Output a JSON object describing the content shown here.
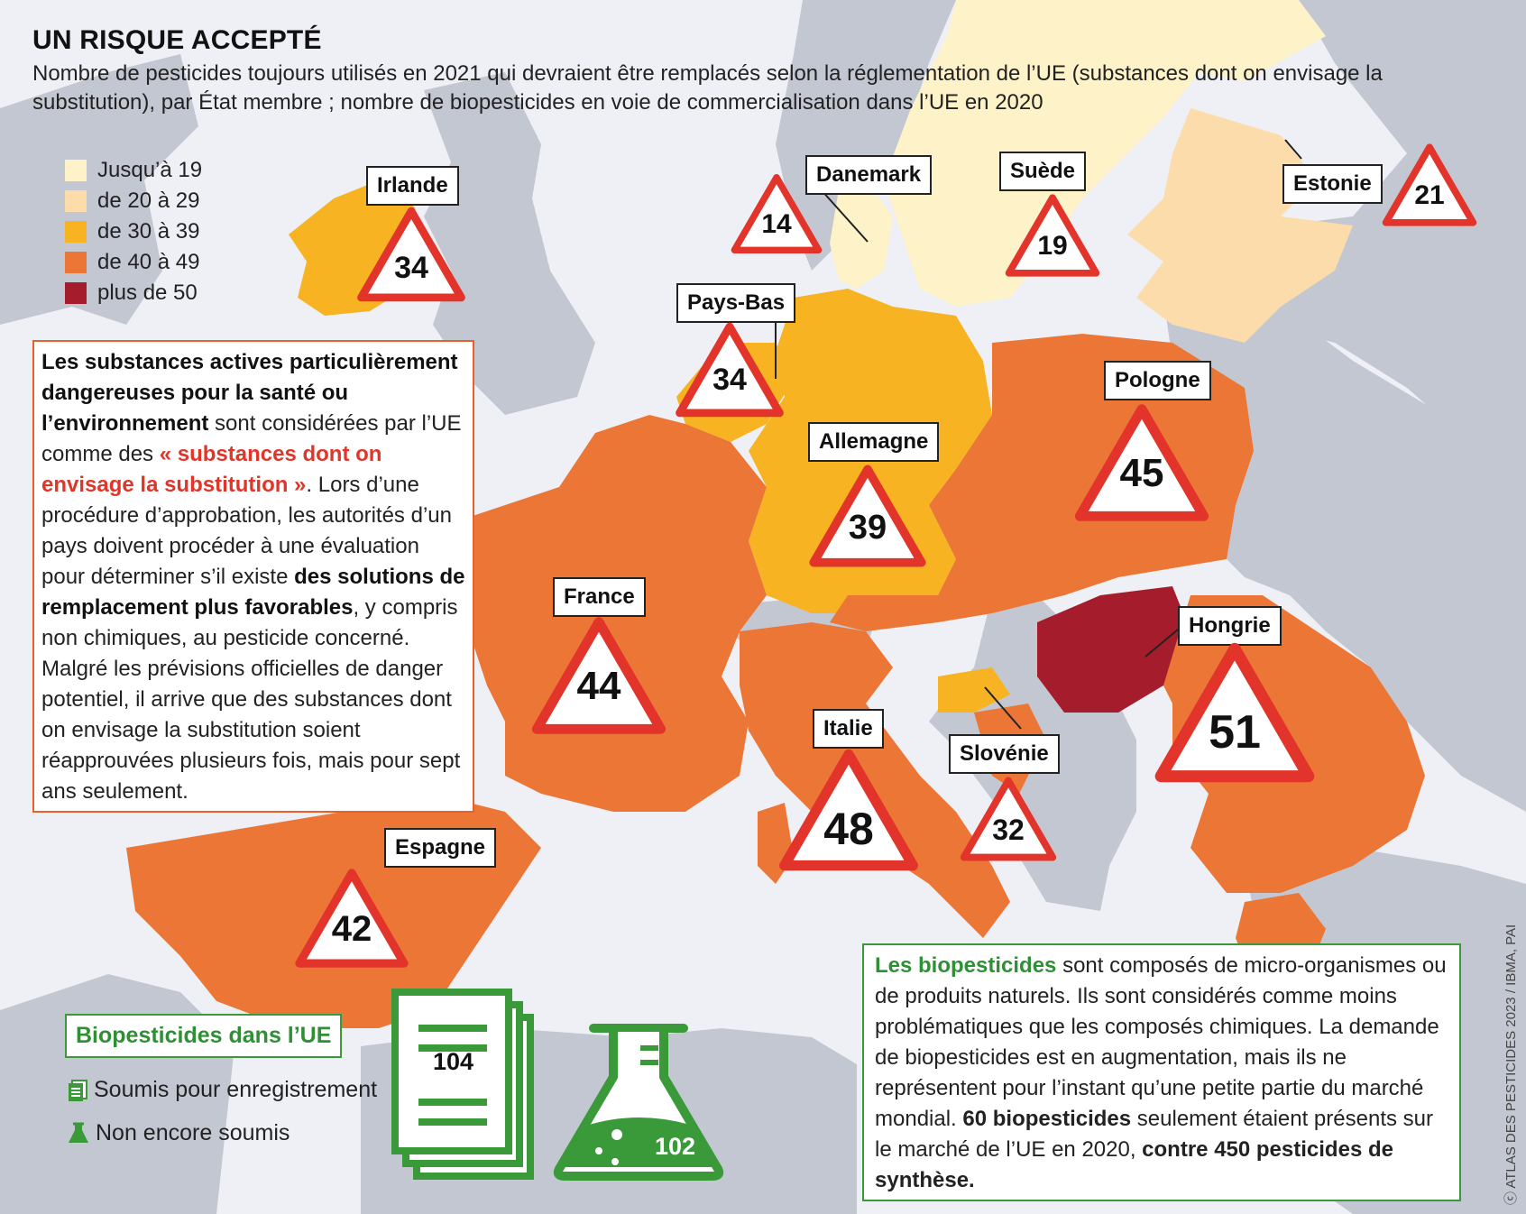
{
  "header": {
    "title": "UN RISQUE ACCEPTÉ",
    "subtitle": "Nombre de pesticides toujours utilisés en 2021 qui devraient être remplacés selon la réglementation de l’UE (substances dont on envisage la substitution), par État membre ; nombre de biopesticides en voie de commercialisation dans l’UE en 2020"
  },
  "legend": [
    {
      "label": "Jusqu’à 19",
      "color": "#fdf2c8"
    },
    {
      "label": "de 20 à 29",
      "color": "#fddcab"
    },
    {
      "label": "de 30 à 39",
      "color": "#f7b321"
    },
    {
      "label": "de 40 à 49",
      "color": "#ec7636"
    },
    {
      "label": "plus de 50",
      "color": "#a51c2c"
    }
  ],
  "countries": {
    "irlande": {
      "name": "Irlande",
      "value": "34"
    },
    "danemark": {
      "name": "Danemark",
      "value": "14"
    },
    "suede": {
      "name": "Suède",
      "value": "19"
    },
    "estonie": {
      "name": "Estonie",
      "value": "21"
    },
    "pays_bas": {
      "name": "Pays-Bas",
      "value": "34"
    },
    "pologne": {
      "name": "Pologne",
      "value": "45"
    },
    "allemagne": {
      "name": "Allemagne",
      "value": "39"
    },
    "france": {
      "name": "France",
      "value": "44"
    },
    "hongrie": {
      "name": "Hongrie",
      "value": "51"
    },
    "italie": {
      "name": "Italie",
      "value": "48"
    },
    "slovenie": {
      "name": "Slovénie",
      "value": "32"
    },
    "espagne": {
      "name": "Espagne",
      "value": "42"
    }
  },
  "infobox": {
    "bold1": "Les substances actives particulièrement dangereuses pour la santé ou l’environnement",
    "text1": " sont considérées par l’UE comme des ",
    "red1": "« substances dont on envisage la substitution »",
    "text2": ". Lors d’une procédure d’approbation, les autorités d’un pays doivent procéder à une évaluation pour déterminer s’il existe ",
    "bold2": "des solutions de remplacement plus favorables",
    "text3": ", y compris non chimiques, au pesticide concerné. Malgré les prévisions officielles de danger potentiel, il arrive que des substances dont on envisage la substitution soient réapprouvées plusieurs fois, mais pour sept ans seulement."
  },
  "biopesticides": {
    "heading": "Biopesticides dans l’UE",
    "submitted_label": "Soumis pour enregistrement",
    "not_submitted_label": "Non encore soumis",
    "submitted_value": "104",
    "not_submitted_value": "102"
  },
  "biobox": {
    "green1": "Les biopesticides",
    "text1": " sont composés de micro-organismes ou de produits naturels. Ils sont considérés comme moins problématiques que les composés chimiques. La demande de biopesticides est en augmentation, mais ils ne représentent pour l’instant qu’une petite partie du marché mondial. ",
    "bold1": "60 biopesticides",
    "text2": " seulement étaient présents sur le marché de l’UE en 2020, ",
    "bold2": "contre 450 pesticides de synthèse."
  },
  "credit": "ATLAS DES PESTICIDES 2023 / IBMA, PAI",
  "colors": {
    "sea": "#eef0f5",
    "land_nonEU": "#c3c7d1",
    "triangle_border": "#e2342a",
    "green": "#3a9a3a"
  }
}
